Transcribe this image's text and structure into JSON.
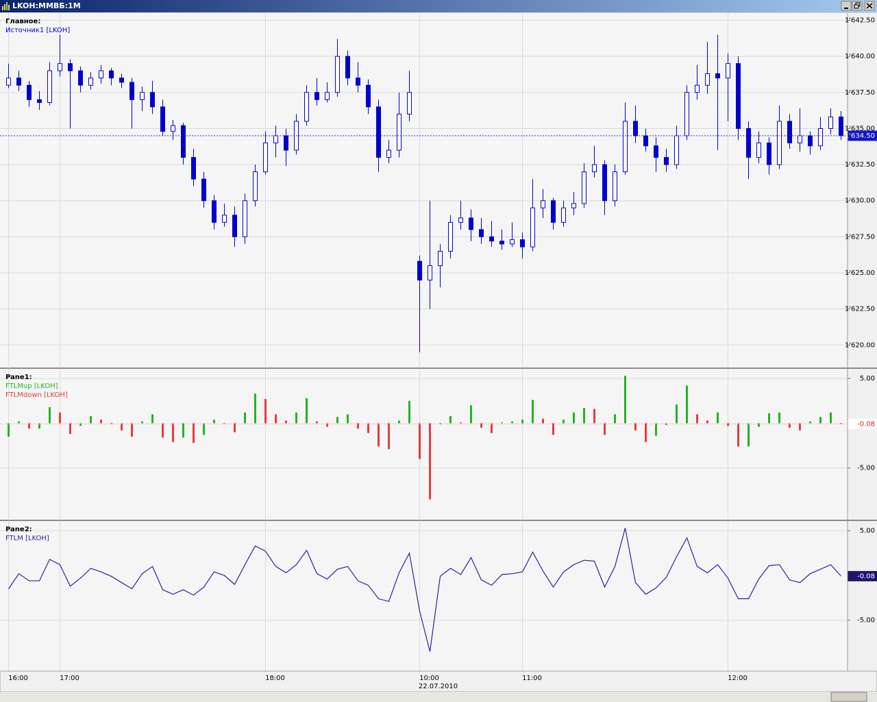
{
  "window": {
    "title": "LKOH:ММВБ:1М"
  },
  "time_axis": {
    "xlim": [
      -0.5,
      81.5
    ],
    "xticks": [
      {
        "value": 0,
        "label": "16:00"
      },
      {
        "value": 5,
        "label": "17:00"
      },
      {
        "value": 25,
        "label": "18:00"
      },
      {
        "value": 40,
        "label": "10:00"
      },
      {
        "value": 50,
        "label": "11:00"
      },
      {
        "value": 70,
        "label": "12:00"
      }
    ],
    "date": "22.07.2010"
  },
  "chart_data": [
    {
      "type": "candlestick",
      "title": "Главное:",
      "grid": true,
      "ylim": [
        1618.4,
        1643.0
      ],
      "yticks": [
        {
          "value": 1620,
          "label": "1'620.00"
        },
        {
          "value": 1622.5,
          "label": "1'622.50"
        },
        {
          "value": 1625,
          "label": "1'625.00"
        },
        {
          "value": 1627.5,
          "label": "1'627.50"
        },
        {
          "value": 1630,
          "label": "1'630.00"
        },
        {
          "value": 1632.5,
          "label": "1'632.50"
        },
        {
          "value": 1635,
          "label": "1'635.00"
        },
        {
          "value": 1637.5,
          "label": "1'637.50"
        },
        {
          "value": 1640,
          "label": "1'640.00"
        },
        {
          "value": 1642.5,
          "label": "1'642.50"
        }
      ],
      "last_value": {
        "value": 1634.5,
        "label": "1'634.50"
      },
      "series": [
        {
          "name": "Источник1 [LKOH]",
          "color": "#0000cc",
          "open": [
            1638.0,
            1638.5,
            1638.0,
            1637.0,
            1636.8,
            1639.0,
            1639.5,
            1639.0,
            1638.0,
            1638.5,
            1639.0,
            1638.5,
            1638.2,
            1637.0,
            1637.5,
            1636.5,
            1634.8,
            1635.2,
            1633.0,
            1631.5,
            1630.0,
            1628.5,
            1629.0,
            1627.5,
            1630.0,
            1632.0,
            1634.0,
            1634.5,
            1633.5,
            1635.5,
            1637.5,
            1637.0,
            1637.5,
            1640.0,
            1638.5,
            1638.0,
            1636.5,
            1633.0,
            1633.5,
            1636.0,
            1625.8,
            1624.5,
            1625.5,
            1626.5,
            1628.5,
            1628.8,
            1628.0,
            1627.5,
            1627.2,
            1627.0,
            1627.3,
            1626.8,
            1629.5,
            1630.0,
            1628.5,
            1629.5,
            1629.8,
            1632.0,
            1632.5,
            1630.0,
            1632.0,
            1635.5,
            1634.5,
            1633.8,
            1633.0,
            1632.5,
            1634.5,
            1637.5,
            1638.0,
            1638.8,
            1638.5,
            1639.5,
            1635.0,
            1633.0,
            1634.0,
            1632.5,
            1635.5,
            1634.0,
            1634.5,
            1633.8,
            1635.0,
            1635.8
          ],
          "high": [
            1639.5,
            1639.0,
            1638.3,
            1637.6,
            1639.6,
            1641.5,
            1639.8,
            1639.3,
            1638.9,
            1639.4,
            1639.2,
            1638.8,
            1638.5,
            1637.9,
            1638.3,
            1637.0,
            1635.6,
            1635.4,
            1633.6,
            1632.0,
            1630.4,
            1629.8,
            1629.6,
            1630.5,
            1632.5,
            1634.8,
            1635.2,
            1635.0,
            1636.0,
            1638.0,
            1638.5,
            1638.2,
            1641.2,
            1640.4,
            1639.6,
            1638.4,
            1637.0,
            1634.2,
            1637.5,
            1639.0,
            1626.2,
            1630.0,
            1627.0,
            1629.0,
            1630.0,
            1629.4,
            1628.8,
            1628.6,
            1628.0,
            1628.5,
            1627.8,
            1631.5,
            1630.8,
            1630.2,
            1630.0,
            1630.6,
            1632.6,
            1633.8,
            1632.8,
            1632.5,
            1636.8,
            1636.6,
            1635.0,
            1634.4,
            1633.6,
            1635.2,
            1638.0,
            1639.4,
            1641.0,
            1641.5,
            1640.2,
            1640.0,
            1635.5,
            1634.8,
            1634.4,
            1636.6,
            1636.0,
            1636.4,
            1634.8,
            1635.8,
            1636.4,
            1636.2
          ],
          "low": [
            1637.8,
            1637.6,
            1636.5,
            1636.3,
            1636.6,
            1638.6,
            1635.0,
            1637.5,
            1637.7,
            1638.1,
            1638.0,
            1637.8,
            1635.0,
            1636.2,
            1636.0,
            1634.5,
            1634.2,
            1632.5,
            1631.0,
            1629.5,
            1628.0,
            1628.2,
            1626.8,
            1627.0,
            1629.6,
            1631.8,
            1633.0,
            1632.4,
            1633.2,
            1635.2,
            1636.6,
            1636.8,
            1637.2,
            1638.0,
            1637.5,
            1636.0,
            1632.0,
            1632.6,
            1633.0,
            1635.5,
            1619.5,
            1622.5,
            1624.0,
            1626.0,
            1628.0,
            1627.2,
            1627.0,
            1626.8,
            1626.6,
            1626.8,
            1626.0,
            1626.5,
            1628.8,
            1628.0,
            1628.2,
            1629.0,
            1629.5,
            1631.6,
            1629.0,
            1629.6,
            1631.8,
            1634.0,
            1633.4,
            1632.0,
            1632.0,
            1632.2,
            1634.2,
            1637.0,
            1637.4,
            1633.5,
            1635.5,
            1634.2,
            1631.5,
            1632.6,
            1631.8,
            1632.2,
            1633.6,
            1633.4,
            1633.2,
            1633.5,
            1634.6,
            1634.2
          ],
          "close": [
            1638.5,
            1638.0,
            1637.0,
            1636.8,
            1639.0,
            1639.5,
            1639.0,
            1638.0,
            1638.5,
            1639.0,
            1638.5,
            1638.2,
            1637.0,
            1637.5,
            1636.5,
            1634.8,
            1635.2,
            1633.0,
            1631.5,
            1630.0,
            1628.5,
            1629.0,
            1627.5,
            1630.0,
            1632.0,
            1634.0,
            1634.5,
            1633.5,
            1635.5,
            1637.5,
            1637.0,
            1637.5,
            1640.0,
            1638.5,
            1638.0,
            1636.5,
            1633.0,
            1633.5,
            1636.0,
            1637.5,
            1624.5,
            1625.5,
            1626.5,
            1628.5,
            1628.8,
            1628.0,
            1627.5,
            1627.2,
            1627.0,
            1627.3,
            1626.8,
            1629.5,
            1630.0,
            1628.5,
            1629.5,
            1629.8,
            1632.0,
            1632.5,
            1630.0,
            1632.0,
            1635.5,
            1634.5,
            1633.8,
            1633.0,
            1632.5,
            1634.5,
            1637.5,
            1638.0,
            1638.8,
            1638.5,
            1639.5,
            1635.0,
            1633.0,
            1634.0,
            1632.5,
            1635.5,
            1634.0,
            1634.5,
            1633.8,
            1635.0,
            1635.8,
            1634.5
          ]
        }
      ]
    },
    {
      "type": "bar",
      "title": "Pane1:",
      "grid": true,
      "ylim": [
        -10.85,
        6.08
      ],
      "yticks": [
        {
          "value": 5,
          "label": "5.00"
        },
        {
          "value": -5,
          "label": "-5.00"
        }
      ],
      "last_value": -0.08,
      "series": [
        {
          "name": "FTLMup [LKOH]",
          "color": "#1fb51f",
          "values": [
            -1.5,
            0.2,
            null,
            -0.6,
            1.8,
            null,
            null,
            -0.3,
            0.8,
            null,
            null,
            null,
            null,
            0.2,
            1.0,
            null,
            null,
            -1.6,
            null,
            -1.3,
            0.4,
            null,
            null,
            1.2,
            3.3,
            null,
            null,
            null,
            1.2,
            2.8,
            null,
            null,
            0.7,
            1.0,
            null,
            null,
            null,
            null,
            0.3,
            2.5,
            null,
            null,
            -0.1,
            0.8,
            null,
            2.0,
            null,
            null,
            0.1,
            0.2,
            0.4,
            2.6,
            null,
            null,
            0.4,
            1.2,
            1.7,
            null,
            null,
            1.0,
            5.3,
            null,
            null,
            -1.4,
            -0.2,
            2.1,
            4.2,
            null,
            null,
            1.2,
            null,
            null,
            -2.6,
            -0.4,
            1.1,
            1.2,
            null,
            null,
            0.2,
            0.7,
            1.2,
            null
          ]
        },
        {
          "name": "FTLMdown [LKOH]",
          "color": "#e83a3a",
          "values": [
            null,
            null,
            -0.6,
            null,
            null,
            1.2,
            -1.2,
            null,
            null,
            0.4,
            -0.1,
            -0.8,
            -1.5,
            null,
            null,
            -1.6,
            -2.1,
            null,
            -2.2,
            null,
            null,
            0.0,
            -1.0,
            null,
            null,
            2.7,
            1.0,
            0.3,
            null,
            null,
            0.2,
            -0.4,
            null,
            null,
            -0.6,
            -1.1,
            -2.6,
            -2.9,
            null,
            null,
            -4.0,
            -8.5,
            null,
            null,
            0.1,
            null,
            -0.5,
            -1.1,
            null,
            null,
            null,
            null,
            0.5,
            -1.3,
            null,
            null,
            null,
            1.6,
            -1.3,
            null,
            null,
            -0.8,
            -2.1,
            null,
            null,
            null,
            null,
            1.0,
            0.3,
            null,
            -0.3,
            -2.6,
            null,
            null,
            null,
            null,
            -0.5,
            -0.8,
            null,
            null,
            null,
            -0.08
          ]
        }
      ]
    },
    {
      "type": "line",
      "title": "Pane2:",
      "grid": true,
      "ylim": [
        -10.69,
        6.08
      ],
      "yticks": [
        {
          "value": 5,
          "label": "5.00"
        },
        {
          "value": -5,
          "label": "-5.00"
        }
      ],
      "last_value": -0.08,
      "series": [
        {
          "name": "FTLM [LKOH]",
          "color": "#2b1f9e",
          "values": [
            -1.5,
            0.2,
            -0.6,
            -0.6,
            1.8,
            1.2,
            -1.2,
            -0.3,
            0.8,
            0.4,
            -0.1,
            -0.8,
            -1.5,
            0.2,
            1.0,
            -1.6,
            -2.1,
            -1.6,
            -2.2,
            -1.3,
            0.4,
            0.0,
            -1.0,
            1.2,
            3.3,
            2.7,
            1.0,
            0.3,
            1.2,
            2.8,
            0.2,
            -0.4,
            0.7,
            1.0,
            -0.6,
            -1.1,
            -2.6,
            -2.9,
            0.3,
            2.5,
            -4.0,
            -8.5,
            -0.1,
            0.8,
            0.1,
            2.0,
            -0.5,
            -1.1,
            0.1,
            0.2,
            0.4,
            2.6,
            0.5,
            -1.3,
            0.4,
            1.2,
            1.7,
            1.6,
            -1.3,
            1.0,
            5.3,
            -0.8,
            -2.1,
            -1.4,
            -0.2,
            2.1,
            4.2,
            1.0,
            0.3,
            1.2,
            -0.3,
            -2.6,
            -2.6,
            -0.4,
            1.1,
            1.2,
            -0.5,
            -0.8,
            0.2,
            0.7,
            1.2,
            -0.08
          ]
        }
      ]
    }
  ]
}
